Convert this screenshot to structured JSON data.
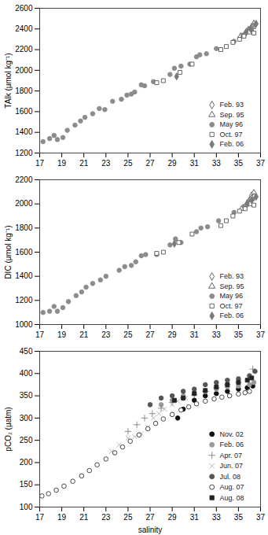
{
  "chart_data": [
    {
      "type": "scatter",
      "ylabel": "TAlk (μmol kg⁻¹)",
      "xlim": [
        17,
        37
      ],
      "xticks": [
        17,
        19,
        21,
        23,
        25,
        27,
        29,
        31,
        33,
        35,
        37
      ],
      "ylim": [
        1200,
        2600
      ],
      "yticks": [
        1200,
        1400,
        1600,
        1800,
        2000,
        2200,
        2400,
        2600
      ],
      "legend": "bottom-right",
      "series": [
        {
          "name": "Feb. 93",
          "marker": "open_diamond",
          "color": "#555555",
          "x": [
            35.6,
            35.9,
            36.2,
            36.4
          ],
          "values": [
            2350,
            2390,
            2420,
            2450
          ]
        },
        {
          "name": "Sep. 95",
          "marker": "open_triangle",
          "color": "#555555",
          "x": [
            35.2,
            35.8,
            36.1,
            36.3
          ],
          "values": [
            2330,
            2380,
            2400,
            2420
          ]
        },
        {
          "name": "May 96",
          "marker": "circle",
          "color": "#8c8c8c",
          "x": [
            17.3,
            17.9,
            18.3,
            18.6,
            19.1,
            19.5,
            20.2,
            20.7,
            21.1,
            21.8,
            22.4,
            22.9,
            23.6,
            24.4,
            24.9,
            25.3,
            25.6,
            26.2,
            26.5,
            27.3,
            28.8,
            29.2,
            29.8,
            30.6,
            31.2,
            31.5,
            32.1,
            33.0,
            34.6,
            35.4,
            35.8,
            36.2,
            36.5
          ],
          "values": [
            1310,
            1340,
            1370,
            1330,
            1350,
            1420,
            1470,
            1510,
            1545,
            1580,
            1630,
            1620,
            1700,
            1720,
            1760,
            1770,
            1790,
            1860,
            1850,
            1890,
            1960,
            2020,
            2040,
            2060,
            2130,
            2150,
            2160,
            2210,
            2280,
            2340,
            2380,
            2410,
            2440
          ]
        },
        {
          "name": "Oct. 97",
          "marker": "open_square",
          "color": "#555555",
          "x": [
            27.6,
            28.2,
            29.7,
            30.8,
            33.4,
            33.9,
            34.5,
            35.1,
            35.5,
            36.0,
            36.4
          ],
          "values": [
            1880,
            1900,
            1980,
            2060,
            2200,
            2230,
            2270,
            2300,
            2330,
            2370,
            2360
          ]
        },
        {
          "name": "Feb. 06",
          "marker": "diamond",
          "color": "#7a7a7a",
          "x": [
            29.4,
            35.7,
            36.1,
            36.6
          ],
          "values": [
            1940,
            2370,
            2400,
            2450
          ]
        }
      ]
    },
    {
      "type": "scatter",
      "ylabel": "DIC (μmol kg⁻¹)",
      "xlim": [
        17,
        37
      ],
      "xticks": [
        17,
        19,
        21,
        23,
        25,
        27,
        29,
        31,
        33,
        35,
        37
      ],
      "ylim": [
        1000,
        2200
      ],
      "yticks": [
        1000,
        1200,
        1400,
        1600,
        1800,
        2000,
        2200
      ],
      "legend": "bottom-right",
      "series": [
        {
          "name": "Feb. 93",
          "marker": "open_diamond",
          "color": "#555555",
          "x": [
            35.7,
            36.0,
            36.2,
            36.4
          ],
          "values": [
            1990,
            2030,
            2070,
            2090
          ]
        },
        {
          "name": "Sep. 95",
          "marker": "open_triangle",
          "color": "#555555",
          "x": [
            35.3,
            35.9,
            36.2,
            36.4
          ],
          "values": [
            1960,
            2010,
            2050,
            2060
          ]
        },
        {
          "name": "May 96",
          "marker": "circle",
          "color": "#8c8c8c",
          "x": [
            17.3,
            17.9,
            18.3,
            18.6,
            19.1,
            19.6,
            20.3,
            20.8,
            21.2,
            21.8,
            22.5,
            23.0,
            24.2,
            24.7,
            25.3,
            25.7,
            26.2,
            26.6,
            27.6,
            28.8,
            29.3,
            29.8,
            31.2,
            31.6,
            32.2,
            33.2,
            34.6,
            35.5,
            35.9,
            36.3
          ],
          "values": [
            1100,
            1110,
            1150,
            1110,
            1140,
            1190,
            1240,
            1270,
            1310,
            1340,
            1370,
            1400,
            1450,
            1480,
            1490,
            1520,
            1570,
            1580,
            1580,
            1660,
            1710,
            1680,
            1770,
            1800,
            1810,
            1860,
            1930,
            1980,
            2020,
            2040
          ]
        },
        {
          "name": "Oct. 97",
          "marker": "open_square",
          "color": "#555555",
          "x": [
            27.6,
            28.2,
            29.6,
            30.8,
            33.4,
            33.9,
            34.5,
            35.1,
            35.6,
            36.1,
            36.4
          ],
          "values": [
            1590,
            1600,
            1680,
            1750,
            1820,
            1860,
            1900,
            1940,
            1960,
            2000,
            1990
          ]
        },
        {
          "name": "Feb. 06",
          "marker": "diamond",
          "color": "#7a7a7a",
          "x": [
            29.2,
            35.8,
            36.2,
            36.6
          ],
          "values": [
            1670,
            2000,
            2030,
            2060
          ]
        }
      ]
    },
    {
      "type": "scatter",
      "xlabel": "salinity",
      "ylabel": "pCO₂ (μatm)",
      "xlim": [
        17,
        37
      ],
      "xticks": [
        17,
        19,
        21,
        23,
        25,
        27,
        29,
        31,
        33,
        35,
        37
      ],
      "ylim": [
        100,
        450
      ],
      "yticks": [
        100,
        150,
        200,
        250,
        300,
        350,
        400,
        450
      ],
      "legend": "bottom-right",
      "series": [
        {
          "name": "Nov. 02",
          "marker": "circle",
          "color": "#111111",
          "x": [
            29.5,
            30.0,
            31.0,
            32.0,
            33.0,
            34.0,
            35.0,
            35.8,
            36.3
          ],
          "values": [
            300,
            320,
            340,
            350,
            355,
            360,
            365,
            368,
            372
          ]
        },
        {
          "name": "Feb. 06",
          "marker": "circle",
          "color": "#9a9a9a",
          "x": [
            28.0,
            29.0,
            30.0,
            31.0,
            32.0,
            33.0,
            34.0,
            35.0,
            36.0,
            36.4
          ],
          "values": [
            330,
            340,
            350,
            355,
            360,
            365,
            370,
            372,
            375,
            380
          ]
        },
        {
          "name": "Apr. 07",
          "marker": "plus",
          "color": "#808080",
          "x": [
            25.0,
            25.8,
            26.5,
            27.2,
            28.0,
            29.0,
            30.0,
            31.0,
            32.0,
            33.0,
            34.0,
            35.0,
            36.0,
            36.3
          ],
          "values": [
            270,
            285,
            300,
            310,
            322,
            335,
            345,
            352,
            360,
            368,
            375,
            380,
            390,
            410
          ]
        },
        {
          "name": "Jun. 07",
          "marker": "times",
          "color": "#b0b0b0",
          "x": [
            23.5,
            24.2,
            25.0,
            25.6,
            26.2,
            26.8,
            27.3,
            27.8,
            28.3,
            29.0,
            29.5,
            30.2,
            31.0,
            32.0,
            33.0,
            34.0,
            35.0,
            36.0
          ],
          "values": [
            225,
            240,
            255,
            258,
            265,
            280,
            300,
            310,
            320,
            330,
            338,
            345,
            355,
            362,
            372,
            380,
            390,
            395
          ]
        },
        {
          "name": "Jul. 08",
          "marker": "circle",
          "color": "#555555",
          "x": [
            27.0,
            28.0,
            29.0,
            30.0,
            31.0,
            32.0,
            33.0,
            34.0,
            35.0,
            36.0,
            36.5
          ],
          "values": [
            330,
            345,
            350,
            360,
            365,
            375,
            380,
            385,
            388,
            395,
            405
          ]
        },
        {
          "name": "Aug. 07",
          "marker": "open_circle",
          "color": "#333333",
          "x": [
            17.2,
            17.8,
            18.5,
            19.2,
            20.0,
            20.8,
            21.5,
            22.2,
            23.0,
            23.8,
            24.5,
            25.2,
            26.0,
            26.8,
            27.5,
            28.2,
            29.0,
            29.8,
            30.5,
            31.2,
            32.0,
            32.8,
            33.5,
            34.2,
            35.0,
            35.6,
            36.0
          ],
          "values": [
            125,
            130,
            138,
            147,
            158,
            170,
            182,
            195,
            208,
            222,
            235,
            248,
            262,
            276,
            288,
            298,
            308,
            318,
            325,
            332,
            338,
            343,
            347,
            350,
            354,
            357,
            360
          ]
        },
        {
          "name": "Aug. 08",
          "marker": "square",
          "color": "#222222",
          "x": [
            29.2,
            30.0,
            31.0,
            32.0,
            33.0,
            34.0,
            35.0,
            35.8,
            36.2
          ],
          "values": [
            340,
            345,
            355,
            362,
            370,
            375,
            380,
            385,
            390
          ]
        }
      ]
    }
  ]
}
